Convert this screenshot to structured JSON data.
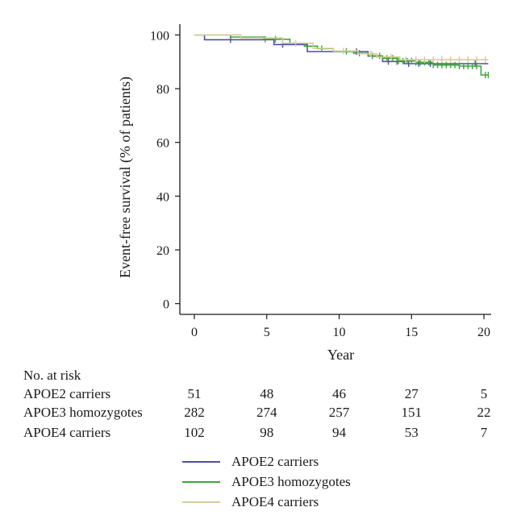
{
  "chart_data": {
    "type": "line",
    "title": "",
    "xlabel": "Year",
    "ylabel": "Event-free survival (% of patients)",
    "xlim": [
      -1,
      20.5
    ],
    "ylim": [
      -4,
      104
    ],
    "xticks": [
      0,
      5,
      10,
      15,
      20
    ],
    "yticks": [
      0,
      20,
      40,
      60,
      80,
      100
    ],
    "grid": false,
    "legend_position": "bottom",
    "series": [
      {
        "name": "APOE2 carriers",
        "color": "#4b4fa6",
        "step": true,
        "points": [
          [
            0,
            100
          ],
          [
            0.7,
            98.2
          ],
          [
            4,
            98.2
          ],
          [
            5.5,
            96.4
          ],
          [
            7.8,
            93.8
          ],
          [
            11,
            93.8
          ],
          [
            12,
            92.1
          ],
          [
            13,
            90.1
          ],
          [
            14.5,
            89.3
          ],
          [
            20.3,
            89.3
          ]
        ],
        "censored": [
          2.5,
          6.1,
          11.2,
          13.4,
          14.0,
          14.8,
          15.5,
          16.3,
          19.4
        ]
      },
      {
        "name": "APOE3 homozygotes",
        "color": "#3aa63a",
        "step": true,
        "points": [
          [
            0,
            100
          ],
          [
            2.5,
            99.2
          ],
          [
            4.8,
            98.4
          ],
          [
            6.6,
            96.9
          ],
          [
            7.6,
            95.8
          ],
          [
            8.5,
            94.9
          ],
          [
            9.6,
            93.9
          ],
          [
            11,
            93.2
          ],
          [
            12,
            92.2
          ],
          [
            13,
            91.3
          ],
          [
            14,
            90.3
          ],
          [
            15.3,
            89.8
          ],
          [
            16.5,
            88.8
          ],
          [
            18.3,
            88.4
          ],
          [
            19.8,
            85.1
          ],
          [
            20.3,
            85.1
          ]
        ],
        "censored": [
          4.9,
          5.6,
          8.8,
          10.5,
          11.4,
          12.3,
          12.8,
          13.3,
          13.7,
          14.1,
          14.4,
          14.7,
          15.0,
          15.3,
          15.6,
          15.9,
          16.2,
          16.5,
          16.8,
          17.1,
          17.4,
          17.7,
          18.0,
          18.3,
          18.6,
          18.9,
          19.2,
          19.5,
          20.1,
          20.3
        ]
      },
      {
        "name": "APOE4 carriers",
        "color": "#d7c99a",
        "step": true,
        "points": [
          [
            0,
            100
          ],
          [
            3.2,
            98.9
          ],
          [
            6.1,
            96.9
          ],
          [
            8.2,
            95.0
          ],
          [
            9.6,
            94.0
          ],
          [
            11.3,
            93.0
          ],
          [
            12.6,
            91.8
          ],
          [
            14.2,
            90.8
          ],
          [
            20.3,
            90.8
          ]
        ],
        "censored": [
          7.0,
          10.3,
          12.2,
          13.6,
          14.6,
          15.3,
          15.9,
          16.5,
          17.1,
          17.7,
          18.3,
          18.9,
          19.5,
          20.1
        ]
      }
    ],
    "risk_table": {
      "title": "No. at risk",
      "times": [
        0,
        5,
        10,
        15,
        20
      ],
      "rows": [
        {
          "label": "APOE2 carriers",
          "values": [
            "51",
            "48",
            "46",
            "27",
            "5"
          ]
        },
        {
          "label": "APOE3 homozygotes",
          "values": [
            "282",
            "274",
            "257",
            "151",
            "22"
          ]
        },
        {
          "label": "APOE4 carriers",
          "values": [
            "102",
            "98",
            "94",
            "53",
            "7"
          ]
        }
      ]
    }
  }
}
